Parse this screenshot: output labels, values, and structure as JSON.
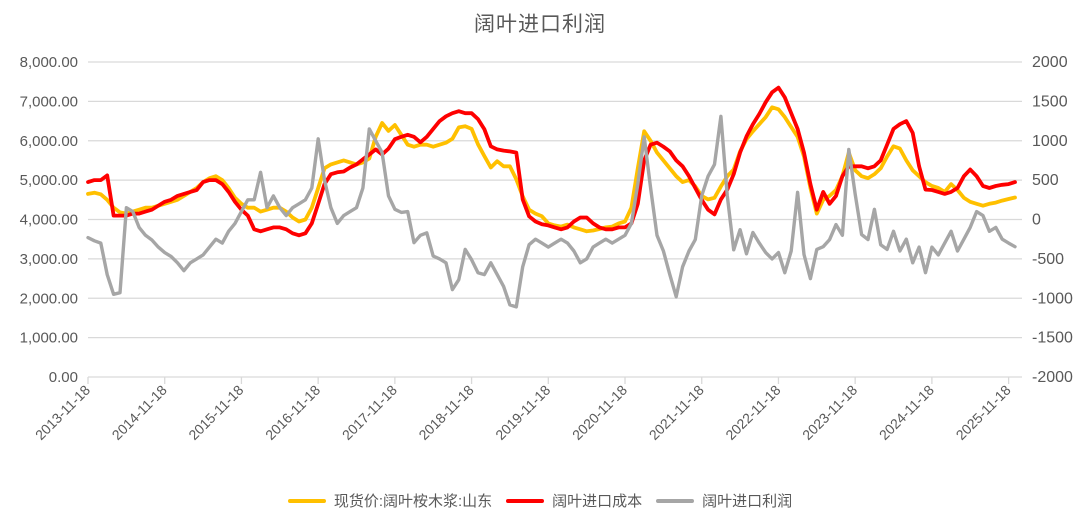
{
  "title": "阔叶进口利润",
  "colors": {
    "spot": "#FFC000",
    "cost": "#FE0000",
    "profit": "#A6A6A6",
    "grid": "#D9D9D9",
    "axis_text": "#595959",
    "title_text": "#595959",
    "background": "#FFFFFF"
  },
  "chart_data": {
    "type": "line",
    "title": "阔叶进口利润",
    "xlabel": "",
    "ylabel": "",
    "grid": "horizontal",
    "legend_position": "bottom",
    "start_period": "2013-11",
    "end_period": "2025-12",
    "points_per_year": 12,
    "left_axis": {
      "min": 0,
      "max": 8000,
      "step": 1000,
      "format": "thousands-2dp"
    },
    "right_axis": {
      "min": -2000,
      "max": 2000,
      "step": 500,
      "format": "integer"
    },
    "x_tick_labels": [
      "2013-11-18",
      "2014-11-18",
      "2015-11-18",
      "2016-11-18",
      "2017-11-18",
      "2018-11-18",
      "2019-11-18",
      "2020-11-18",
      "2021-11-18",
      "2022-11-18",
      "2023-11-18",
      "2024-11-18",
      "2025-11-18"
    ],
    "series": [
      {
        "name": "现货价:阔叶桉木浆:山东",
        "axis": "left",
        "color": "#FFC000",
        "width": 3.8,
        "values": [
          4650,
          4680,
          4640,
          4500,
          4300,
          4180,
          4150,
          4200,
          4250,
          4300,
          4300,
          4350,
          4400,
          4450,
          4500,
          4600,
          4700,
          4800,
          4950,
          5050,
          5100,
          5000,
          4800,
          4550,
          4400,
          4300,
          4300,
          4200,
          4250,
          4300,
          4300,
          4200,
          4050,
          3950,
          4000,
          4300,
          4800,
          5300,
          5400,
          5450,
          5500,
          5450,
          5400,
          5450,
          5550,
          6100,
          6450,
          6250,
          6400,
          6150,
          5900,
          5850,
          5900,
          5900,
          5850,
          5900,
          5950,
          6050,
          6340,
          6370,
          6300,
          5910,
          5610,
          5320,
          5480,
          5350,
          5350,
          5020,
          4590,
          4250,
          4150,
          4080,
          3900,
          3850,
          3820,
          3870,
          3800,
          3750,
          3700,
          3720,
          3760,
          3800,
          3820,
          3900,
          3950,
          4300,
          5300,
          6240,
          6000,
          5700,
          5500,
          5300,
          5100,
          4950,
          5000,
          4840,
          4600,
          4510,
          4550,
          4840,
          5100,
          5270,
          5730,
          6040,
          6240,
          6420,
          6600,
          6850,
          6800,
          6600,
          6350,
          6100,
          5600,
          4800,
          4150,
          4500,
          4600,
          4750,
          5100,
          5700,
          5250,
          5100,
          5050,
          5150,
          5300,
          5600,
          5860,
          5800,
          5500,
          5250,
          5100,
          4950,
          4850,
          4800,
          4700,
          4900,
          4750,
          4550,
          4450,
          4400,
          4350,
          4400,
          4430,
          4480,
          4520,
          4560
        ]
      },
      {
        "name": "阔叶进口成本",
        "axis": "left",
        "color": "#FE0000",
        "width": 3.8,
        "values": [
          4950,
          5000,
          5000,
          5120,
          4100,
          4100,
          4100,
          4150,
          4150,
          4200,
          4250,
          4350,
          4450,
          4500,
          4600,
          4650,
          4700,
          4750,
          4950,
          5000,
          5000,
          4900,
          4700,
          4450,
          4250,
          4100,
          3750,
          3700,
          3750,
          3800,
          3800,
          3750,
          3650,
          3600,
          3650,
          3900,
          4400,
          4900,
          5150,
          5200,
          5220,
          5320,
          5400,
          5530,
          5650,
          5780,
          5650,
          5800,
          6040,
          6100,
          6150,
          6100,
          5960,
          6100,
          6300,
          6500,
          6620,
          6700,
          6750,
          6700,
          6700,
          6550,
          6290,
          5860,
          5780,
          5750,
          5730,
          5700,
          4510,
          4080,
          3950,
          3880,
          3850,
          3800,
          3750,
          3800,
          3950,
          4050,
          4050,
          3900,
          3800,
          3750,
          3750,
          3800,
          3800,
          3900,
          4400,
          5500,
          5900,
          5950,
          5850,
          5730,
          5500,
          5350,
          5100,
          4800,
          4500,
          4250,
          4130,
          4510,
          4760,
          5150,
          5700,
          6110,
          6420,
          6680,
          6980,
          7230,
          7350,
          7100,
          6700,
          6300,
          5700,
          4900,
          4250,
          4700,
          4400,
          4600,
          5100,
          5350,
          5350,
          5350,
          5300,
          5350,
          5500,
          5900,
          6300,
          6420,
          6500,
          6200,
          5350,
          4760,
          4750,
          4700,
          4650,
          4700,
          4800,
          5100,
          5270,
          5100,
          4850,
          4800,
          4850,
          4880,
          4900,
          4950
        ]
      },
      {
        "name": "阔叶进口利润",
        "axis": "right",
        "color": "#A6A6A6",
        "width": 3.4,
        "values": [
          -230,
          -270,
          -300,
          -700,
          -950,
          -930,
          150,
          100,
          -100,
          -200,
          -260,
          -350,
          -420,
          -470,
          -550,
          -650,
          -550,
          -500,
          -450,
          -350,
          -250,
          -300,
          -150,
          -50,
          100,
          250,
          250,
          600,
          150,
          300,
          150,
          50,
          150,
          200,
          250,
          400,
          1025,
          500,
          150,
          -50,
          50,
          100,
          150,
          400,
          1150,
          1000,
          850,
          300,
          130,
          90,
          100,
          -295,
          -200,
          -170,
          -465,
          -500,
          -550,
          -890,
          -765,
          -380,
          -510,
          -675,
          -700,
          -550,
          -700,
          -850,
          -1085,
          -1110,
          -600,
          -320,
          -250,
          -300,
          -350,
          -300,
          -250,
          -300,
          -400,
          -550,
          -500,
          -350,
          -300,
          -250,
          -300,
          -250,
          -200,
          -50,
          450,
          1050,
          400,
          -200,
          -400,
          -700,
          -980,
          -600,
          -400,
          -255,
          300,
          550,
          700,
          1310,
          300,
          -385,
          -130,
          -435,
          -165,
          -300,
          -420,
          -500,
          -420,
          -675,
          -400,
          345,
          -445,
          -750,
          -380,
          -345,
          -255,
          -65,
          -200,
          890,
          320,
          -190,
          -255,
          130,
          -320,
          -380,
          -150,
          -400,
          -250,
          -550,
          -350,
          -675,
          -350,
          -450,
          -300,
          -150,
          -400,
          -250,
          -100,
          100,
          50,
          -150,
          -100,
          -250,
          -300,
          -345
        ]
      }
    ]
  },
  "legend": {
    "items": [
      {
        "label": "现货价:阔叶桉木浆:山东",
        "color": "#FFC000"
      },
      {
        "label": "阔叶进口成本",
        "color": "#FE0000"
      },
      {
        "label": "阔叶进口利润",
        "color": "#A6A6A6"
      }
    ]
  }
}
